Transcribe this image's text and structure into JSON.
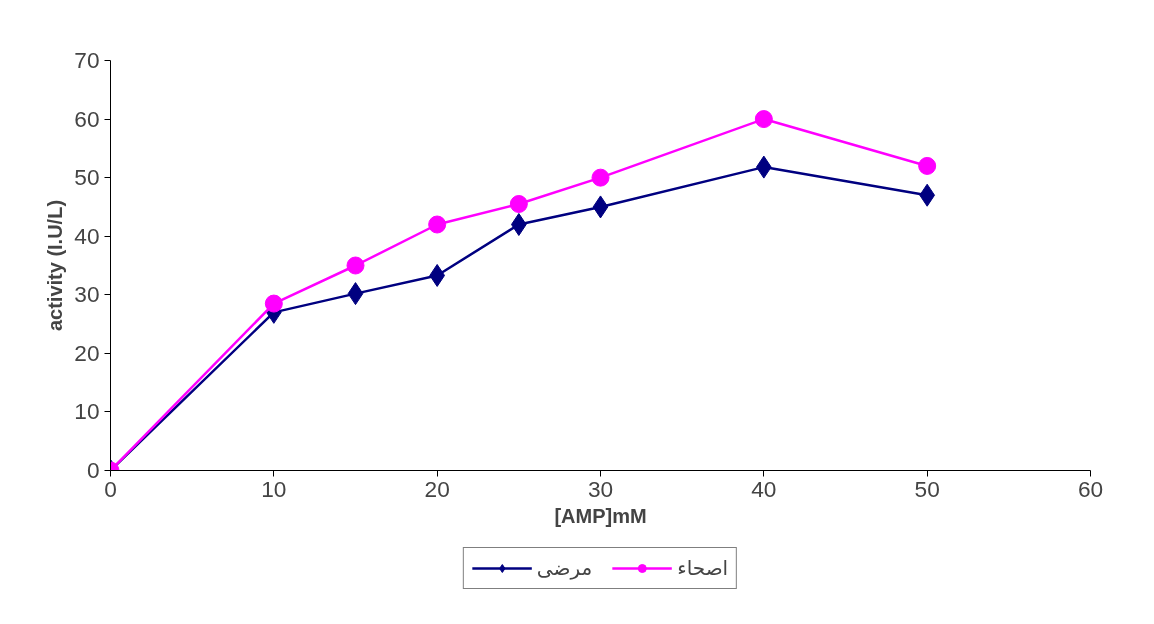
{
  "chart_data": {
    "type": "line",
    "xlabel": "[AMP]mM",
    "ylabel": "activity (I.U/L)",
    "x": [
      0,
      10,
      15,
      20,
      25,
      30,
      40,
      50
    ],
    "series": [
      {
        "name": "مرضى",
        "color": "#000080",
        "marker": "diamond",
        "values": [
          0,
          27,
          30.2,
          33.3,
          42,
          45,
          51.8,
          47
        ]
      },
      {
        "name": "اصحاء",
        "color": "#ff00ff",
        "marker": "circle",
        "values": [
          0,
          28.5,
          35,
          42,
          45.5,
          50,
          60,
          52
        ]
      }
    ],
    "xlim": [
      0,
      60
    ],
    "xticks": [
      0,
      10,
      20,
      30,
      40,
      50,
      60
    ],
    "ylim": [
      0,
      70
    ],
    "yticks": [
      0,
      10,
      20,
      30,
      40,
      50,
      60,
      70
    ],
    "grid": false,
    "legend": "bottom",
    "line_style": "solid"
  }
}
